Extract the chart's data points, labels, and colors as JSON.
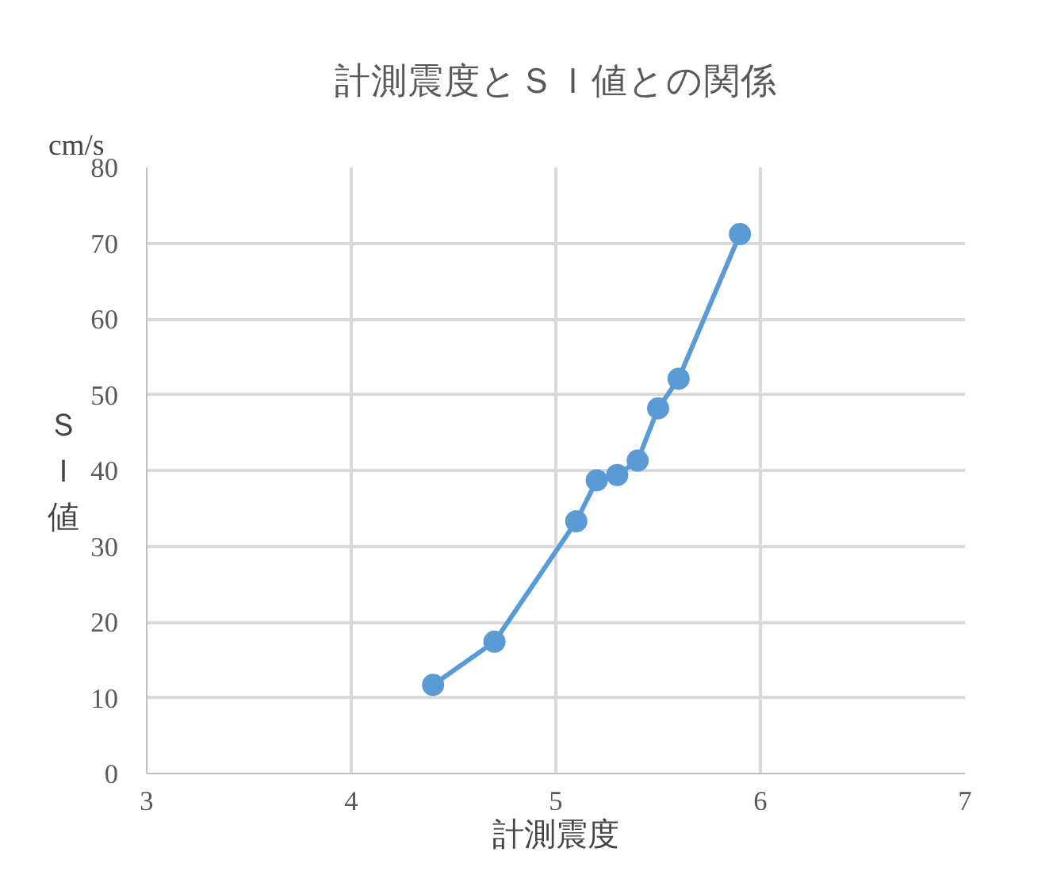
{
  "chart_data": {
    "type": "line",
    "title": "計測震度とＳＩ値との関係",
    "xlabel": "計測震度",
    "ylabel": "ＳＩ値",
    "annotations": [
      "cm/s"
    ],
    "x": [
      4.4,
      4.7,
      5.1,
      5.2,
      5.3,
      5.4,
      5.5,
      5.6,
      5.9
    ],
    "series": [
      {
        "color": "#5b9bd5",
        "values": [
          11.7,
          17.4,
          33.3,
          38.7,
          39.4,
          41.3,
          48.2,
          52.1,
          71.2
        ]
      }
    ],
    "xlim": [
      3,
      7
    ],
    "xticks": [
      3,
      4,
      5,
      6,
      7
    ],
    "ylim": [
      0,
      80
    ],
    "yticks": [
      0,
      10,
      20,
      30,
      40,
      50,
      60,
      70,
      80
    ],
    "grid": true,
    "marker": "circle",
    "line_style": "solid"
  }
}
